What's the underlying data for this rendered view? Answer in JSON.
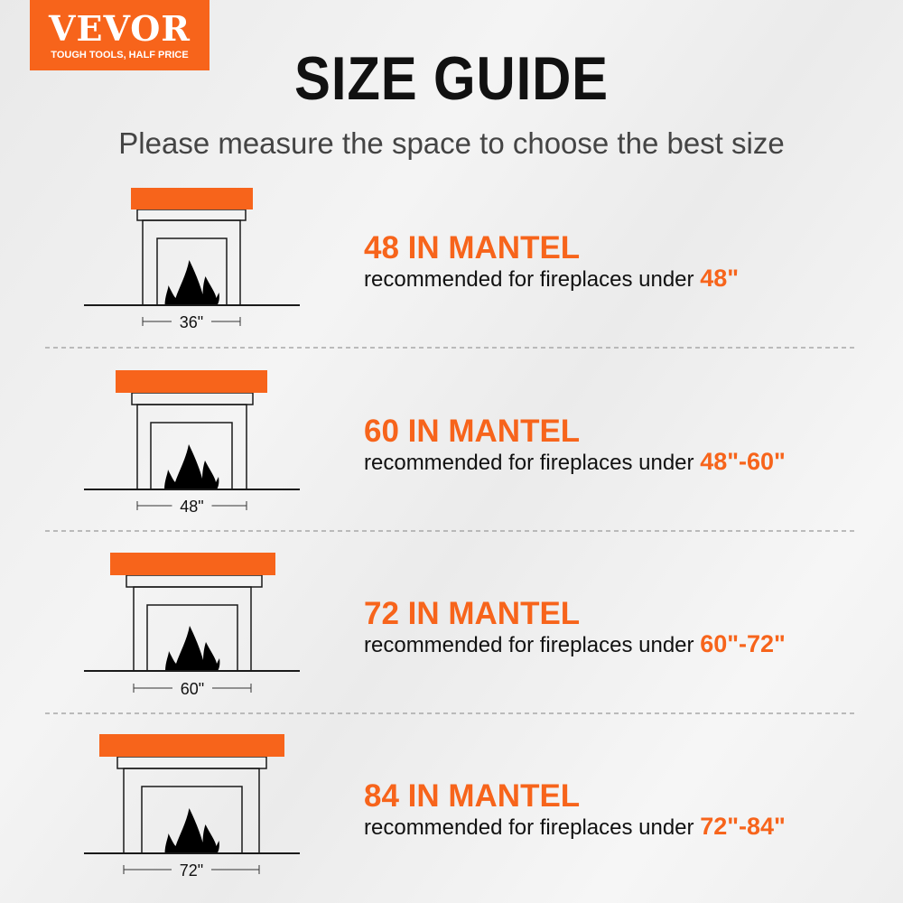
{
  "logo": {
    "brand": "VEVOR",
    "tagline": "TOUGH TOOLS, HALF PRICE"
  },
  "title": "SIZE GUIDE",
  "subtitle": "Please measure the space to choose the best size",
  "colors": {
    "accent": "#f7641b",
    "text": "#111111"
  },
  "rows": [
    {
      "fireplace_width": "36\"",
      "title": "48 IN MANTEL",
      "text": "recommended for fireplaces under",
      "range": "48\""
    },
    {
      "fireplace_width": "48\"",
      "title": "60 IN MANTEL",
      "text": "recommended for fireplaces under",
      "range": "48\"-60\""
    },
    {
      "fireplace_width": "60\"",
      "title": "72 IN MANTEL",
      "text": "recommended for fireplaces under",
      "range": "60\"-72\""
    },
    {
      "fireplace_width": "72\"",
      "title": "84 IN MANTEL",
      "text": "recommended for fireplaces under",
      "range": "72\"-84\""
    }
  ]
}
